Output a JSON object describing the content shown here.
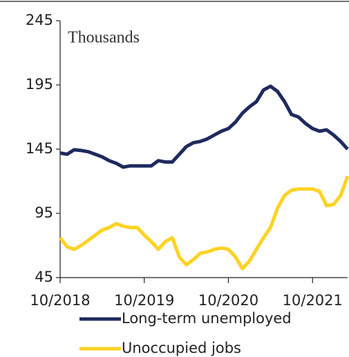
{
  "chart_data": {
    "type": "line",
    "annotation": "Thousands",
    "categories": [
      "10/2018",
      null,
      null,
      null,
      null,
      null,
      null,
      null,
      null,
      null,
      null,
      null,
      "10/2019",
      null,
      null,
      null,
      null,
      null,
      null,
      null,
      null,
      null,
      null,
      null,
      "10/2020",
      null,
      null,
      null,
      null,
      null,
      null,
      null,
      null,
      null,
      null,
      null,
      "10/2021",
      null,
      null,
      null,
      null,
      null
    ],
    "series": [
      {
        "name": "Long-term unemployed",
        "color": "#1f2a5e",
        "values": [
          142,
          141,
          144.5,
          144,
          143,
          141,
          139,
          136,
          134,
          131,
          132,
          132,
          132,
          132,
          136,
          135,
          135,
          141,
          147,
          150,
          151,
          153,
          156,
          159,
          161,
          166,
          173,
          178,
          182,
          191,
          194,
          190,
          182,
          172,
          170,
          165,
          161,
          159,
          160,
          156,
          151,
          145
        ]
      },
      {
        "name": "Unoccupied jobs",
        "color": "#fdd323",
        "values": [
          76,
          69,
          67,
          70,
          74,
          78,
          82,
          84,
          87,
          85,
          84,
          84,
          78,
          73,
          67,
          73,
          76,
          61,
          55,
          59,
          64,
          65,
          67,
          68,
          67,
          61,
          52,
          58,
          67,
          76,
          84,
          99,
          109,
          113,
          114,
          114,
          114,
          112,
          101,
          102,
          109,
          124
        ]
      }
    ],
    "ylim": [
      45,
      245
    ],
    "yticks": [
      45,
      95,
      145,
      195,
      245
    ],
    "grid": false
  }
}
